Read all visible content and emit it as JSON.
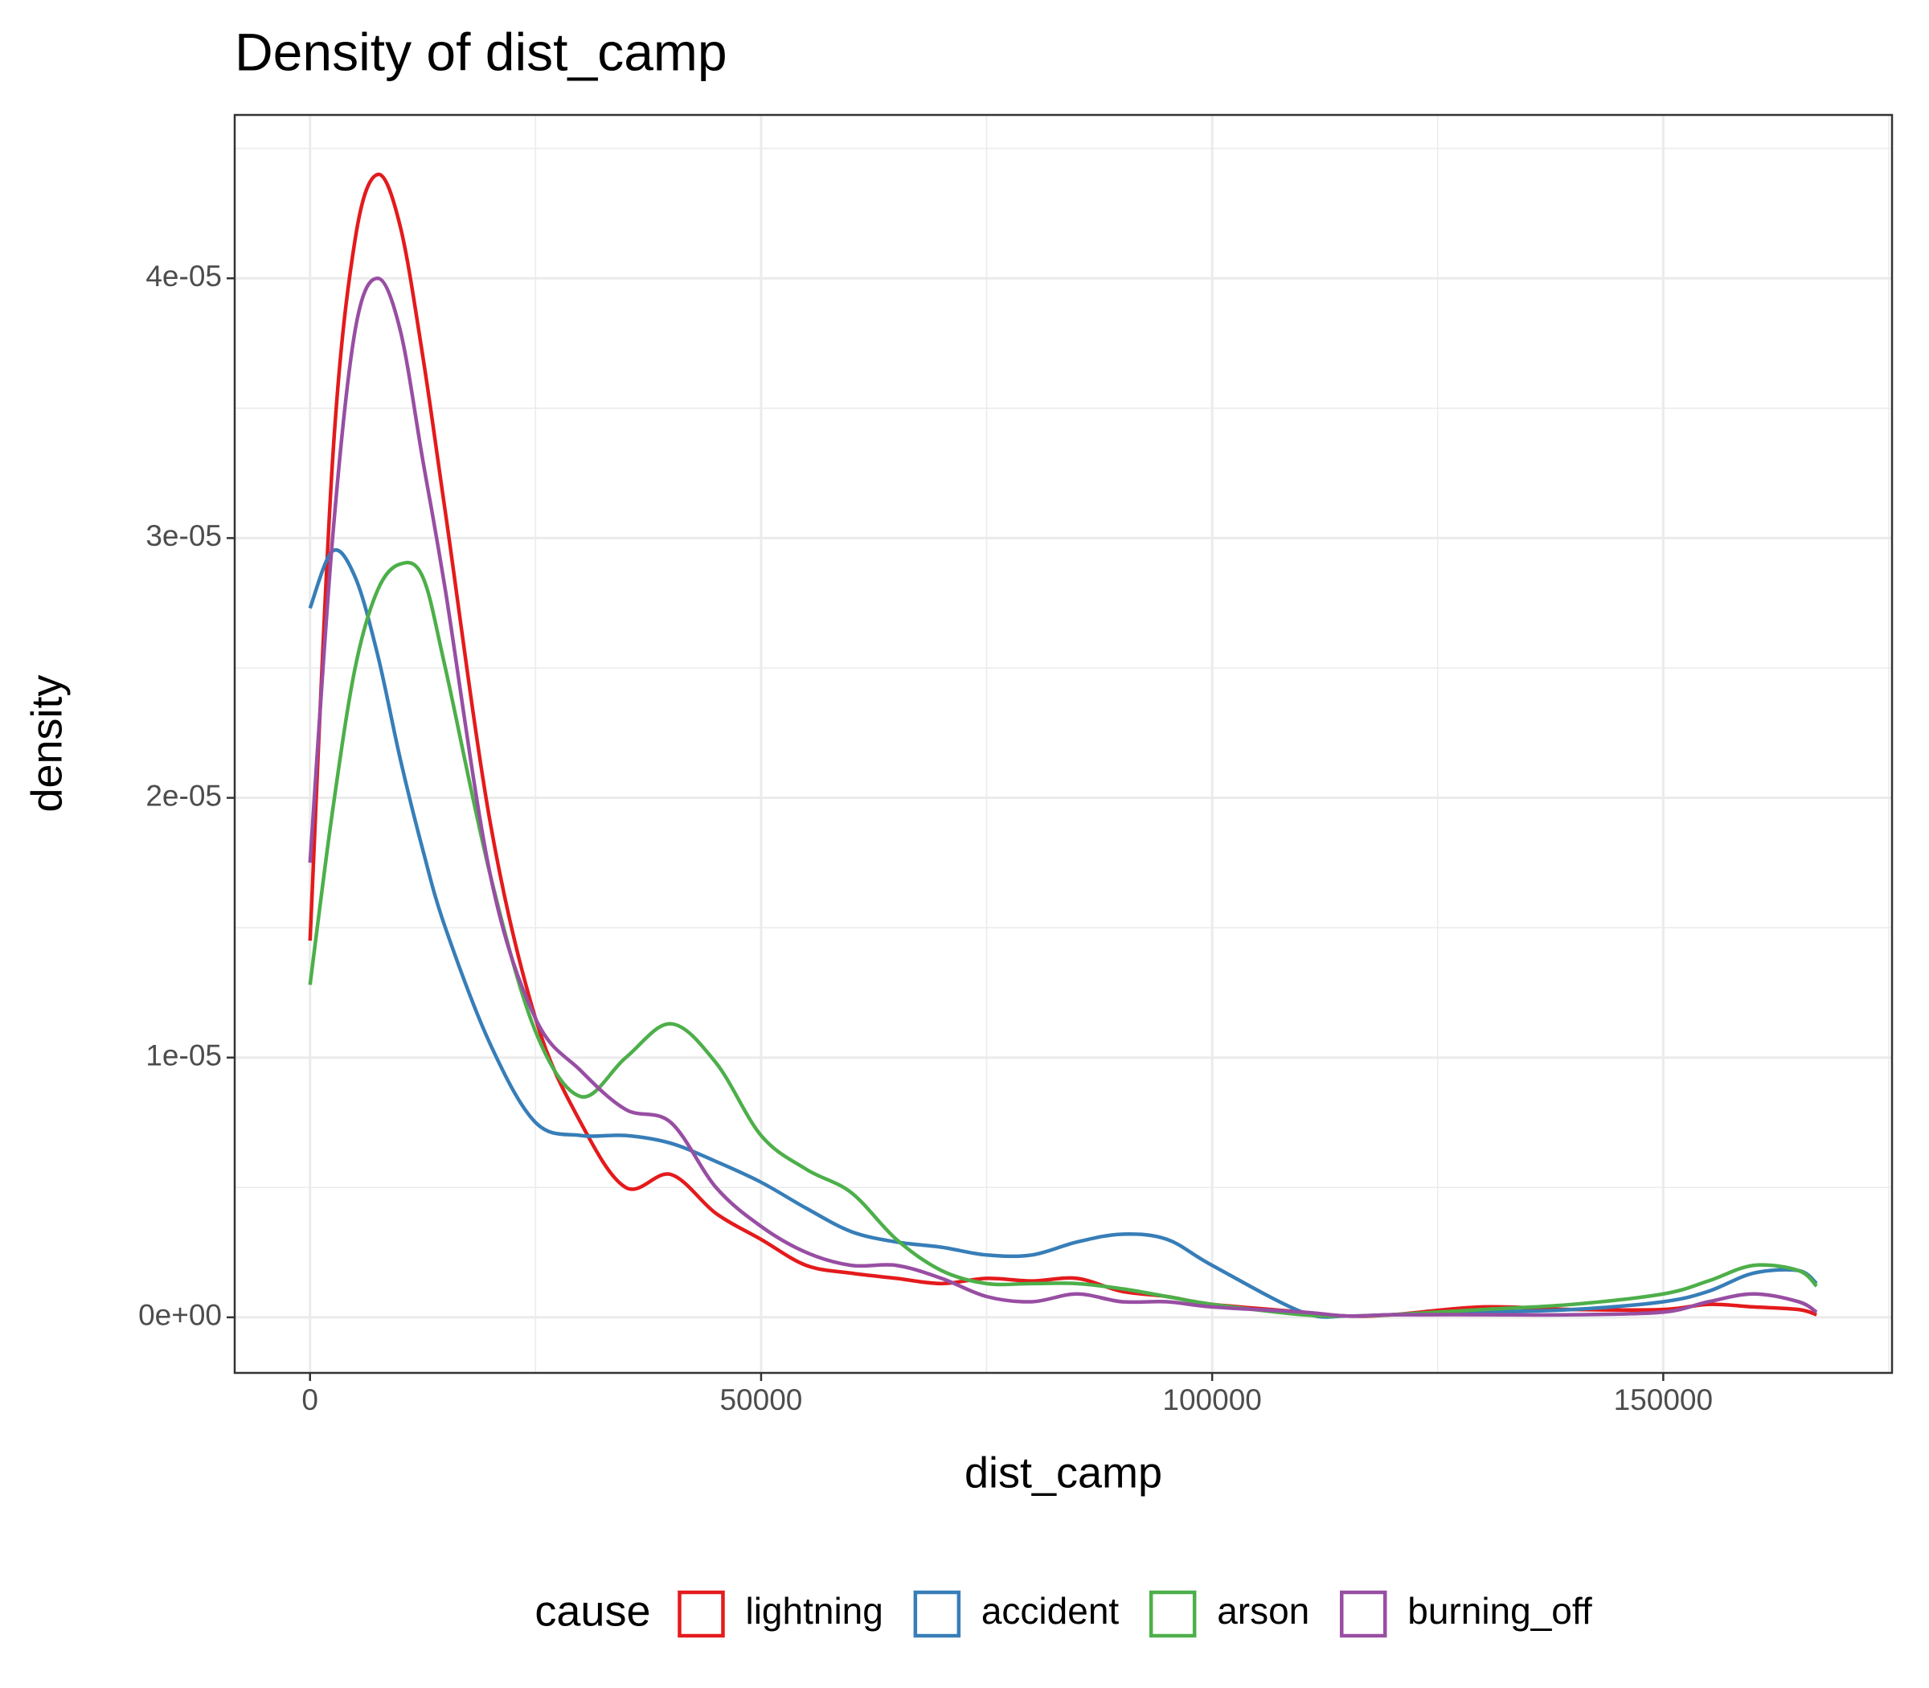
{
  "chart_data": {
    "type": "line",
    "title": "Density of dist_camp",
    "x_label": "dist_camp",
    "y_label": "density",
    "legend_title": "cause",
    "legend_position": "bottom",
    "grid": true,
    "minor_grid": true,
    "xlim": [
      -8350,
      175360
    ],
    "xticks": [
      0,
      50000,
      100000,
      150000
    ],
    "ylim": [
      -2.14e-06,
      4.629e-05
    ],
    "yticks": [
      {
        "value": 0,
        "label": "0e+00"
      },
      {
        "value": 1e-05,
        "label": "1e-05"
      },
      {
        "value": 2e-05,
        "label": "2e-05"
      },
      {
        "value": 3e-05,
        "label": "3e-05"
      },
      {
        "value": 4e-05,
        "label": "4e-05"
      }
    ],
    "x": [
      0,
      2500,
      5000,
      7500,
      10000,
      12500,
      15000,
      20000,
      25000,
      30000,
      35000,
      40000,
      45000,
      50000,
      55000,
      60000,
      65000,
      70000,
      75000,
      80000,
      85000,
      90000,
      95000,
      100000,
      110000,
      115000,
      120000,
      130000,
      140000,
      150000,
      155000,
      160000,
      165000,
      167000
    ],
    "series": [
      {
        "name": "lightning",
        "color": "#e41a1c",
        "values": [
          1.45e-05,
          3.3e-05,
          4.15e-05,
          4.4e-05,
          4.2e-05,
          3.7e-05,
          3.1e-05,
          1.9e-05,
          1.15e-05,
          7.5e-06,
          5e-06,
          5.5e-06,
          4e-06,
          3e-06,
          2e-06,
          1.7e-06,
          1.5e-06,
          1.3e-06,
          1.5e-06,
          1.4e-06,
          1.5e-06,
          1e-06,
          8e-07,
          5e-07,
          2e-07,
          5e-08,
          1e-07,
          4e-07,
          3e-07,
          3e-07,
          5e-07,
          4e-07,
          3e-07,
          1e-07
        ]
      },
      {
        "name": "accident",
        "color": "#377eb8",
        "values": [
          2.73e-05,
          2.95e-05,
          2.85e-05,
          2.55e-05,
          2.15e-05,
          1.8e-05,
          1.5e-05,
          1.05e-05,
          7.5e-06,
          7e-06,
          7e-06,
          6.7e-06,
          6e-06,
          5.2e-06,
          4.2e-06,
          3.3e-06,
          2.9e-06,
          2.7e-06,
          2.4e-06,
          2.4e-06,
          2.9e-06,
          3.2e-06,
          3e-06,
          2e-06,
          2e-07,
          5e-08,
          1e-07,
          2e-07,
          3e-07,
          6e-07,
          1e-06,
          1.7e-06,
          1.8e-06,
          1.3e-06
        ]
      },
      {
        "name": "arson",
        "color": "#4daf4a",
        "values": [
          1.28e-05,
          1.95e-05,
          2.5e-05,
          2.8e-05,
          2.9e-05,
          2.85e-05,
          2.5e-05,
          1.7e-05,
          1.1e-05,
          8.5e-06,
          1e-05,
          1.13e-05,
          9.8e-06,
          7e-06,
          5.7e-06,
          4.8e-06,
          3e-06,
          1.8e-06,
          1.3e-06,
          1.3e-06,
          1.3e-06,
          1.1e-06,
          8e-07,
          5e-07,
          1e-07,
          5e-08,
          1e-07,
          3e-07,
          5e-07,
          9e-07,
          1.4e-06,
          2e-06,
          1.8e-06,
          1.2e-06
        ]
      },
      {
        "name": "burning_off",
        "color": "#984ea3",
        "values": [
          1.75e-05,
          3e-05,
          3.8e-05,
          4e-05,
          3.8e-05,
          3.3e-05,
          2.8e-05,
          1.7e-05,
          1.15e-05,
          9.5e-06,
          8e-06,
          7.5e-06,
          5e-06,
          3.5e-06,
          2.5e-06,
          2e-06,
          2e-06,
          1.5e-06,
          8e-07,
          6e-07,
          9e-07,
          6e-07,
          6e-07,
          4e-07,
          2e-07,
          5e-08,
          1e-07,
          1e-07,
          1e-07,
          2e-07,
          6e-07,
          9e-07,
          6e-07,
          2e-07
        ]
      }
    ]
  }
}
